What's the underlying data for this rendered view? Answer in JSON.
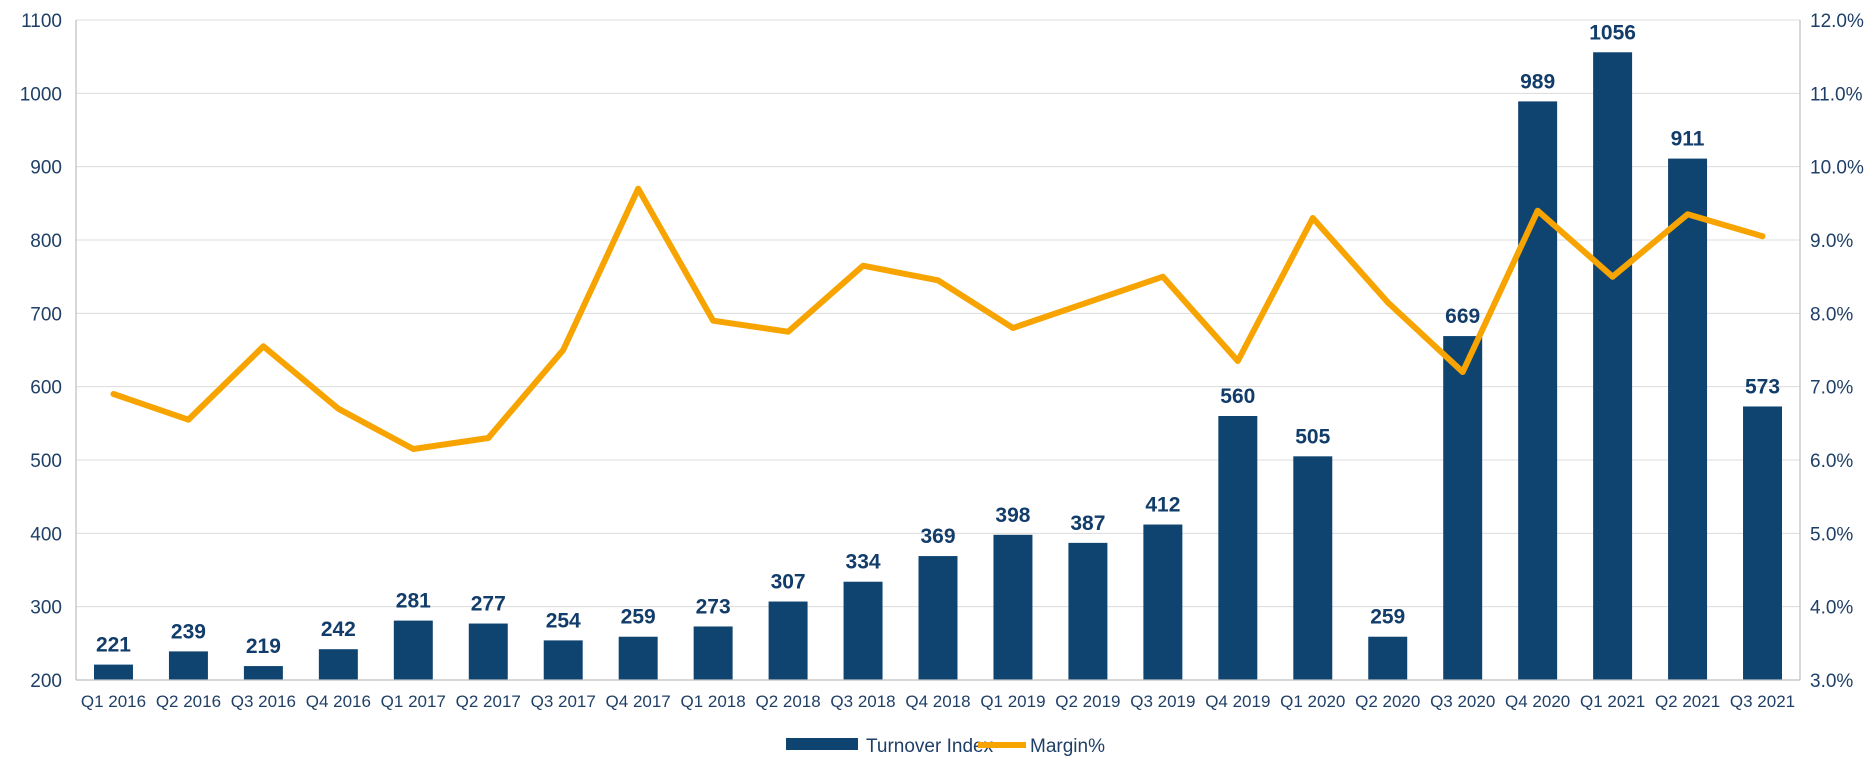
{
  "chart_data": {
    "type": "bar",
    "categories": [
      "Q1 2016",
      "Q2 2016",
      "Q3 2016",
      "Q4 2016",
      "Q1 2017",
      "Q2 2017",
      "Q3 2017",
      "Q4 2017",
      "Q1 2018",
      "Q2 2018",
      "Q3 2018",
      "Q4 2018",
      "Q1 2019",
      "Q2 2019",
      "Q3 2019",
      "Q4 2019",
      "Q1 2020",
      "Q2 2020",
      "Q3 2020",
      "Q4 2020",
      "Q1 2021",
      "Q2 2021",
      "Q3 2021"
    ],
    "series": [
      {
        "name": "Turnover Index",
        "type": "bar",
        "axis": "left",
        "color": "#0f4470",
        "values": [
          221,
          239,
          219,
          242,
          281,
          277,
          254,
          259,
          273,
          307,
          334,
          369,
          398,
          387,
          412,
          560,
          505,
          259,
          669,
          989,
          1056,
          911,
          573
        ],
        "labels": [
          "221",
          "239",
          "219",
          "242",
          "281",
          "277",
          "254",
          "259",
          "273",
          "307",
          "334",
          "369",
          "398",
          "387",
          "412",
          "560",
          "505",
          "259",
          "669",
          "989",
          "1056",
          "911",
          "573"
        ]
      },
      {
        "name": "Margin%",
        "type": "line",
        "axis": "right",
        "color": "#f7a400",
        "values": [
          6.9,
          6.55,
          7.55,
          6.7,
          6.15,
          6.3,
          7.5,
          9.7,
          7.9,
          7.75,
          8.65,
          8.45,
          7.8,
          8.15,
          8.5,
          7.35,
          9.3,
          8.15,
          7.2,
          9.4,
          8.5,
          9.35,
          9.05
        ]
      }
    ],
    "y_left": {
      "ylim": [
        200,
        1100
      ],
      "ticks": [
        "200",
        "300",
        "400",
        "500",
        "600",
        "700",
        "800",
        "900",
        "1000",
        "1100"
      ]
    },
    "y_right": {
      "ylim": [
        3.0,
        12.0
      ],
      "ticks": [
        "3.0%",
        "4.0%",
        "5.0%",
        "6.0%",
        "7.0%",
        "8.0%",
        "9.0%",
        "10.0%",
        "11.0%",
        "12.0%"
      ]
    },
    "grid": true,
    "legend": "bottom-center",
    "gridline_color": "#dcdcdc",
    "axis_color": "#bfbfbf"
  }
}
